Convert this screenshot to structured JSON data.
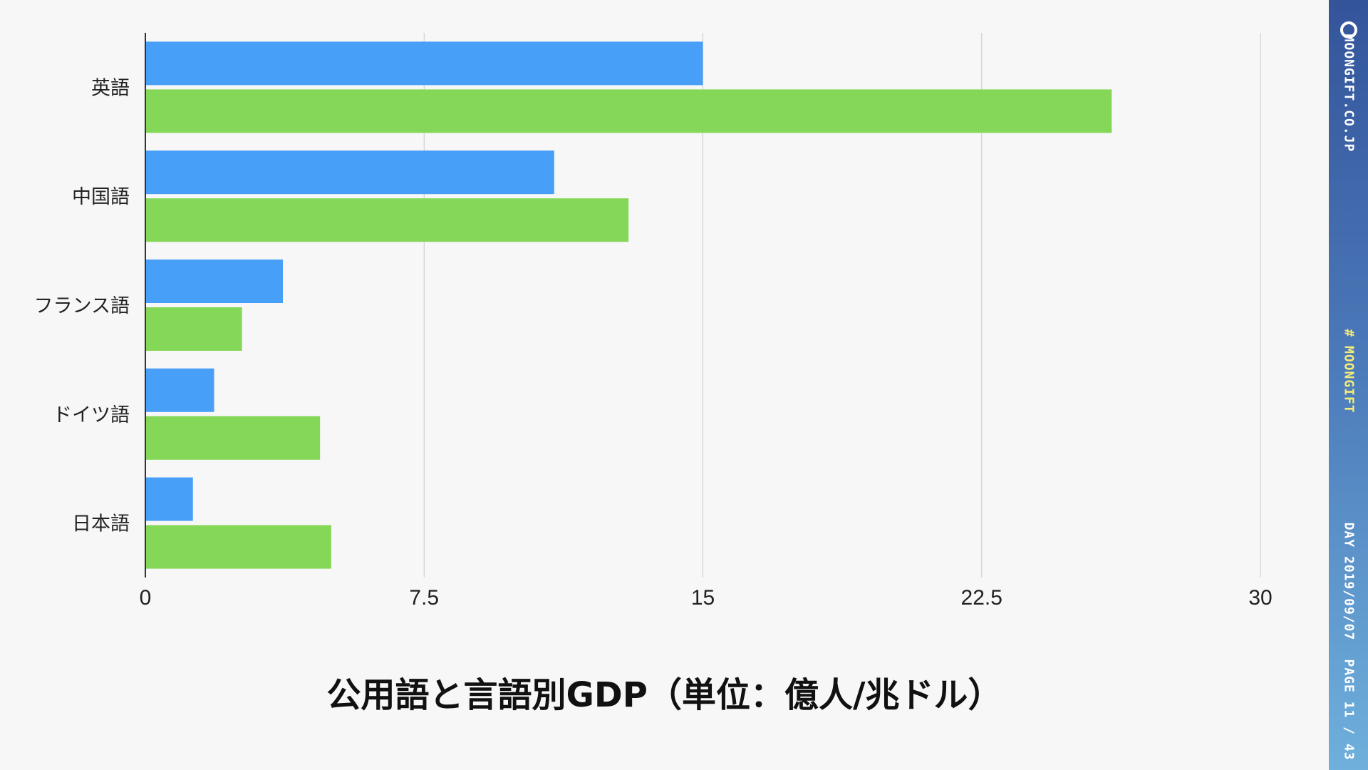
{
  "chart_data": {
    "type": "bar",
    "orientation": "horizontal",
    "title": "公用語と言語別GDP（単位：億人/兆ドル）",
    "categories": [
      "英語",
      "中国語",
      "フランス語",
      "ドイツ語",
      "日本語"
    ],
    "series": [
      {
        "color": "#489ff8",
        "values": [
          15.0,
          11.0,
          3.7,
          1.85,
          1.28
        ]
      },
      {
        "color": "#84d757",
        "values": [
          26.0,
          13.0,
          2.6,
          4.7,
          5.0
        ]
      }
    ],
    "xlim": [
      0,
      30
    ],
    "xticks": [
      "0",
      "7.5",
      "15",
      "22.5",
      "30"
    ],
    "grid": true,
    "legend": "none"
  },
  "sidebar": {
    "brand": "MOONGIFT.CO.JP",
    "hashtag": "# MOONGIFT",
    "day": "DAY 2019/09/07",
    "page": "PAGE 11 / 43",
    "logo_icon": "moongift-logo-icon"
  }
}
